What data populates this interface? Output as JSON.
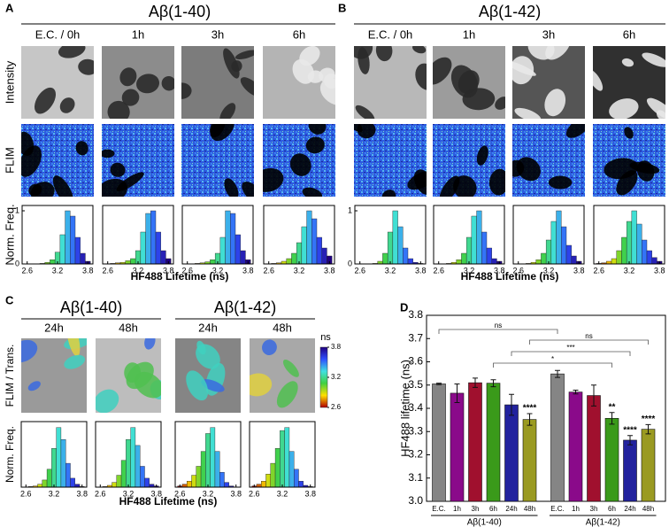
{
  "panels": {
    "A": {
      "letter": "A",
      "title": "Aβ(1-40)",
      "columns": [
        "E.C. / 0h",
        "1h",
        "3h",
        "6h"
      ],
      "rows": [
        "Intensity",
        "FLIM",
        "Norm. Freq."
      ],
      "xlabel": "HF488 Lifetime (ns)"
    },
    "B": {
      "letter": "B",
      "title": "Aβ(1-42)",
      "columns": [
        "E.C. / 0h",
        "1h",
        "3h",
        "6h"
      ],
      "xlabel": "HF488 Lifetime (ns)"
    },
    "C": {
      "letter": "C",
      "groups": [
        {
          "title": "Aβ(1-40)",
          "columns": [
            "24h",
            "48h"
          ]
        },
        {
          "title": "Aβ(1-42)",
          "columns": [
            "24h",
            "48h"
          ]
        }
      ],
      "rows": [
        "FLIM / Trans.",
        "Norm. Freq."
      ],
      "xlabel": "HF488 Lifetime (ns)",
      "colorbar": {
        "label": "ns",
        "range": [
          2.6,
          3.8
        ],
        "ticks": [
          3.8,
          3.2,
          2.6
        ],
        "colors": [
          "#b00000",
          "#ffe000",
          "#40d040",
          "#40e0e0",
          "#3050ff",
          "#200080"
        ]
      }
    },
    "D": {
      "letter": "D"
    }
  },
  "chart_data": [
    {
      "type": "histogram",
      "bins": [
        2.55,
        2.65,
        2.75,
        2.85,
        2.95,
        3.05,
        3.15,
        3.25,
        3.35,
        3.45,
        3.55,
        3.65,
        3.75,
        3.85
      ],
      "values": [
        0,
        0,
        0,
        0.01,
        0.03,
        0.08,
        0.22,
        0.55,
        1,
        0.9,
        0.5,
        0.2,
        0.05
      ],
      "xlim": [
        2.5,
        3.9
      ],
      "ylim": [
        0,
        1.1
      ],
      "xticks": [
        2.6,
        3.2,
        3.8
      ],
      "yticks": [
        0,
        1
      ]
    },
    {
      "type": "histogram",
      "bins": [
        2.55,
        2.65,
        2.75,
        2.85,
        2.95,
        3.05,
        3.15,
        3.25,
        3.35,
        3.45,
        3.55,
        3.65,
        3.75,
        3.85
      ],
      "values": [
        0,
        0.01,
        0.02,
        0.03,
        0.06,
        0.1,
        0.25,
        0.6,
        0.95,
        1,
        0.6,
        0.25,
        0.1
      ],
      "xlim": [
        2.5,
        3.9
      ],
      "ylim": [
        0,
        1.1
      ],
      "xticks": [
        2.6,
        3.2,
        3.8
      ]
    },
    {
      "type": "histogram",
      "bins": [
        2.55,
        2.65,
        2.75,
        2.85,
        2.95,
        3.05,
        3.15,
        3.25,
        3.35,
        3.45,
        3.55,
        3.65,
        3.75,
        3.85
      ],
      "values": [
        0,
        0,
        0.01,
        0.02,
        0.04,
        0.08,
        0.2,
        0.5,
        1,
        0.95,
        0.55,
        0.25,
        0.08
      ],
      "xlim": [
        2.5,
        3.9
      ],
      "ylim": [
        0,
        1.1
      ],
      "xticks": [
        2.6,
        3.2,
        3.8
      ]
    },
    {
      "type": "histogram",
      "bins": [
        2.55,
        2.65,
        2.75,
        2.85,
        2.95,
        3.05,
        3.15,
        3.25,
        3.35,
        3.45,
        3.55,
        3.65,
        3.75,
        3.85
      ],
      "values": [
        0,
        0.01,
        0.02,
        0.05,
        0.1,
        0.2,
        0.4,
        0.7,
        1,
        0.85,
        0.5,
        0.3,
        0.15
      ],
      "xlim": [
        2.5,
        3.9
      ],
      "ylim": [
        0,
        1.1
      ],
      "xticks": [
        2.6,
        3.2,
        3.8
      ]
    },
    {
      "type": "histogram",
      "bins": [
        2.55,
        2.65,
        2.75,
        2.85,
        2.95,
        3.05,
        3.15,
        3.25,
        3.35,
        3.45,
        3.55,
        3.65,
        3.75,
        3.85
      ],
      "values": [
        0,
        0,
        0,
        0.01,
        0.05,
        0.2,
        0.6,
        1,
        0.7,
        0.3,
        0.1,
        0.03,
        0.01
      ],
      "xlim": [
        2.5,
        3.9
      ],
      "ylim": [
        0,
        1.1
      ],
      "xticks": [
        2.6,
        3.2,
        3.8
      ],
      "yticks": [
        0,
        1
      ]
    },
    {
      "type": "histogram",
      "bins": [
        2.55,
        2.65,
        2.75,
        2.85,
        2.95,
        3.05,
        3.15,
        3.25,
        3.35,
        3.45,
        3.55,
        3.65,
        3.75,
        3.85
      ],
      "values": [
        0,
        0,
        0.01,
        0.03,
        0.08,
        0.2,
        0.5,
        0.9,
        1,
        0.6,
        0.3,
        0.1,
        0.05
      ],
      "xlim": [
        2.5,
        3.9
      ],
      "ylim": [
        0,
        1.1
      ],
      "xticks": [
        2.6,
        3.2,
        3.8
      ]
    },
    {
      "type": "histogram",
      "bins": [
        2.55,
        2.65,
        2.75,
        2.85,
        2.95,
        3.05,
        3.15,
        3.25,
        3.35,
        3.45,
        3.55,
        3.65,
        3.75,
        3.85
      ],
      "values": [
        0,
        0,
        0.01,
        0.03,
        0.08,
        0.2,
        0.45,
        0.8,
        1,
        0.7,
        0.35,
        0.15,
        0.05
      ],
      "xlim": [
        2.5,
        3.9
      ],
      "ylim": [
        0,
        1.1
      ],
      "xticks": [
        2.6,
        3.2,
        3.8
      ]
    },
    {
      "type": "histogram",
      "bins": [
        2.55,
        2.65,
        2.75,
        2.85,
        2.95,
        3.05,
        3.15,
        3.25,
        3.35,
        3.45,
        3.55,
        3.65,
        3.75,
        3.85
      ],
      "values": [
        0.01,
        0.02,
        0.05,
        0.1,
        0.25,
        0.5,
        0.8,
        1,
        0.75,
        0.45,
        0.25,
        0.12,
        0.05
      ],
      "xlim": [
        2.5,
        3.9
      ],
      "ylim": [
        0,
        1.1
      ],
      "xticks": [
        2.6,
        3.2,
        3.8
      ]
    },
    {
      "type": "histogram",
      "bins": [
        2.55,
        2.65,
        2.75,
        2.85,
        2.95,
        3.05,
        3.15,
        3.25,
        3.35,
        3.45,
        3.55,
        3.65,
        3.75,
        3.85
      ],
      "values": [
        0,
        0.01,
        0.02,
        0.05,
        0.12,
        0.3,
        0.65,
        1,
        0.8,
        0.4,
        0.15,
        0.05,
        0.01
      ],
      "xlim": [
        2.5,
        3.9
      ],
      "ylim": [
        0,
        1.1
      ],
      "xticks": [
        2.6,
        3.2,
        3.8
      ]
    },
    {
      "type": "histogram",
      "bins": [
        2.55,
        2.65,
        2.75,
        2.85,
        2.95,
        3.05,
        3.15,
        3.25,
        3.35,
        3.45,
        3.55,
        3.65,
        3.75,
        3.85
      ],
      "values": [
        0,
        0.01,
        0.03,
        0.08,
        0.2,
        0.45,
        0.8,
        1,
        0.7,
        0.35,
        0.15,
        0.05,
        0.02
      ],
      "xlim": [
        2.5,
        3.9
      ],
      "ylim": [
        0,
        1.1
      ],
      "xticks": [
        2.6,
        3.2,
        3.8
      ]
    },
    {
      "type": "histogram",
      "bins": [
        2.55,
        2.65,
        2.75,
        2.85,
        2.95,
        3.05,
        3.15,
        3.25,
        3.35,
        3.45,
        3.55,
        3.65,
        3.75,
        3.85
      ],
      "values": [
        0.02,
        0.05,
        0.1,
        0.2,
        0.35,
        0.6,
        0.9,
        1,
        0.6,
        0.25,
        0.08,
        0.02,
        0
      ],
      "xlim": [
        2.5,
        3.9
      ],
      "ylim": [
        0,
        1.1
      ],
      "xticks": [
        2.6,
        3.2,
        3.8
      ]
    },
    {
      "type": "histogram",
      "bins": [
        2.55,
        2.65,
        2.75,
        2.85,
        2.95,
        3.05,
        3.15,
        3.25,
        3.35,
        3.45,
        3.55,
        3.65,
        3.75,
        3.85
      ],
      "values": [
        0.02,
        0.05,
        0.1,
        0.22,
        0.4,
        0.65,
        0.95,
        1,
        0.6,
        0.3,
        0.1,
        0.03,
        0.01
      ],
      "xlim": [
        2.5,
        3.9
      ],
      "ylim": [
        0,
        1.1
      ],
      "xticks": [
        2.6,
        3.2,
        3.8
      ]
    },
    {
      "type": "bar",
      "ylabel": "HF488 lifetime (ns)",
      "categories": [
        "E.C.",
        "1h",
        "3h",
        "6h",
        "24h",
        "48h"
      ],
      "colors": [
        "#858585",
        "#8a0a8a",
        "#a0102e",
        "#3a9a1a",
        "#22229e",
        "#9a9a22"
      ],
      "series": [
        {
          "name": "Aβ(1-40)",
          "values": [
            3.505,
            3.465,
            3.51,
            3.508,
            3.415,
            3.352
          ],
          "errors": [
            0.003,
            0.04,
            0.02,
            0.015,
            0.045,
            0.025
          ],
          "annotations": [
            null,
            null,
            null,
            null,
            null,
            "****"
          ]
        },
        {
          "name": "Aβ(1-42)",
          "values": [
            3.548,
            3.47,
            3.455,
            3.357,
            3.263,
            3.31
          ],
          "errors": [
            0.015,
            0.008,
            0.045,
            0.025,
            0.02,
            0.02
          ],
          "annotations": [
            null,
            null,
            null,
            "**",
            "****",
            "****"
          ]
        }
      ],
      "comparisons": [
        "ns",
        null,
        null,
        "*",
        "***",
        "ns"
      ],
      "ylim": [
        3.0,
        3.8
      ],
      "yticks": [
        {
          "value": 3,
          "label": "3.0"
        },
        3.1,
        3.2,
        3.3,
        3.4,
        3.5,
        3.6,
        3.7,
        3.8
      ]
    }
  ]
}
